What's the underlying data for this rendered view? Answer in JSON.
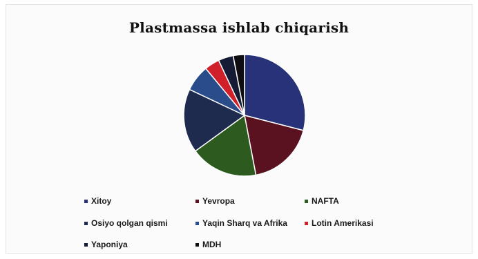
{
  "chart_data": {
    "type": "pie",
    "title": "Plastmassa ishlab chiqarish",
    "categories": [
      "Xitoy",
      "Yevropa",
      "NAFTA",
      "Osiyo qolgan qismi",
      "Yaqin Sharq va Afrika",
      "Lotin Amerikasi",
      "Yaponiya",
      "MDH"
    ],
    "values": [
      29,
      18,
      18,
      17,
      7,
      4,
      4,
      3
    ],
    "colors": [
      "#283278",
      "#5a1220",
      "#2d5a1e",
      "#1e2a4e",
      "#2a4c8a",
      "#d0202a",
      "#151a35",
      "#0e0e12"
    ],
    "legend_position": "bottom"
  }
}
